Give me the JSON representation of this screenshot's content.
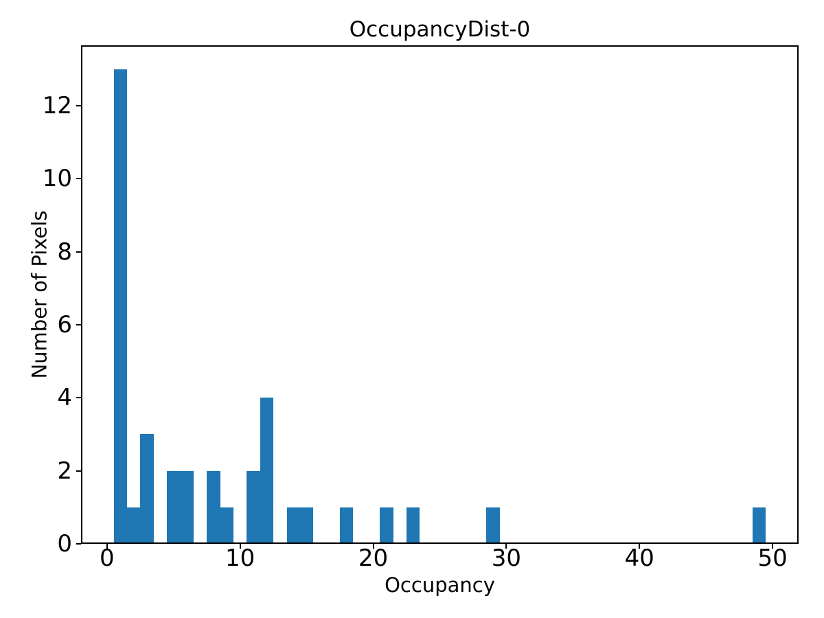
{
  "chart_data": {
    "type": "bar",
    "chart_kind": "histogram",
    "title": "OccupancyDist-0",
    "xlabel": "Occupancy",
    "ylabel": "Number of Pixels",
    "bar_color": "#1f77b4",
    "bin_width": 1,
    "bars": [
      {
        "center": 1,
        "count": 13
      },
      {
        "center": 2,
        "count": 1
      },
      {
        "center": 3,
        "count": 3
      },
      {
        "center": 5,
        "count": 2
      },
      {
        "center": 6,
        "count": 2
      },
      {
        "center": 8,
        "count": 2
      },
      {
        "center": 9,
        "count": 1
      },
      {
        "center": 11,
        "count": 2
      },
      {
        "center": 12,
        "count": 4
      },
      {
        "center": 14,
        "count": 1
      },
      {
        "center": 15,
        "count": 1
      },
      {
        "center": 18,
        "count": 1
      },
      {
        "center": 21,
        "count": 1
      },
      {
        "center": 23,
        "count": 1
      },
      {
        "center": 29,
        "count": 1
      },
      {
        "center": 49,
        "count": 1
      }
    ],
    "xticks": [
      0,
      10,
      20,
      30,
      40,
      50
    ],
    "yticks": [
      0,
      2,
      4,
      6,
      8,
      10,
      12
    ],
    "xlim": [
      -1.95,
      51.95
    ],
    "ylim": [
      0,
      13.65
    ],
    "grid": false,
    "legend": null
  }
}
